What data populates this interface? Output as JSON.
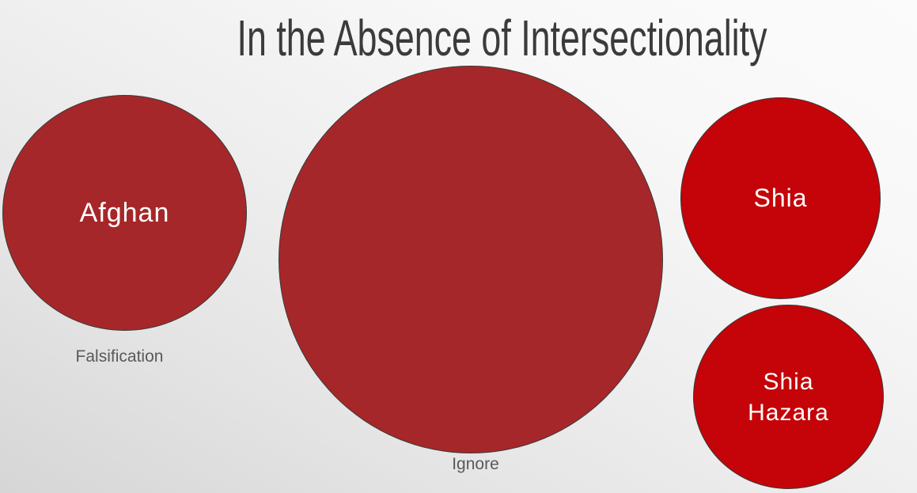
{
  "slide": {
    "title": "In the Absence of Intersectionality",
    "bubbles": [
      {
        "label": "Afghan",
        "caption": "Falsification",
        "fill": "#A62729",
        "relative_size": "medium"
      },
      {
        "label": "",
        "caption": "Ignore",
        "fill": "#A62729",
        "relative_size": "large"
      },
      {
        "label": "Shia",
        "caption": "",
        "fill": "#C40408",
        "relative_size": "small"
      },
      {
        "label": "Shia Hazara",
        "caption": "",
        "fill": "#C40408",
        "relative_size": "small"
      }
    ],
    "colors": {
      "dark_red_fill": "#A62729",
      "bright_red_fill": "#C40408",
      "circle_outline": "#3A3A3A",
      "title_text": "#3B3B3B",
      "caption_text": "#595959",
      "label_text": "#FFFFFF",
      "background_light": "#FBFBFB",
      "background_dark": "#D6D6D6"
    }
  }
}
